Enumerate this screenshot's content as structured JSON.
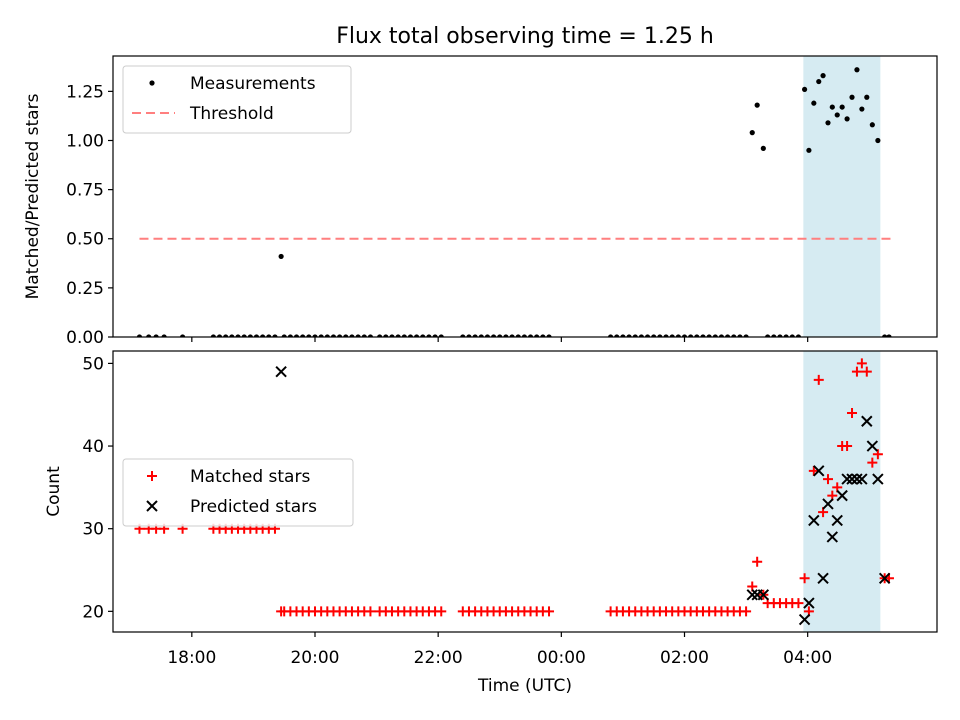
{
  "figure": {
    "title": "Flux total observing time = 1.25 h",
    "xlabel": "Time (UTC)"
  },
  "colors": {
    "axis": "#000000",
    "measurement": "#000000",
    "threshold": "#ff7f7f",
    "matched": "#ff0000",
    "predicted": "#000000",
    "highlight": "#add8e6"
  },
  "chart_data": [
    {
      "type": "scatter",
      "name": "ratio-panel",
      "ylabel": "Matched/Predicted stars",
      "x_unit": "hours since 00:00 UTC on the first day",
      "xlim": [
        16.72,
        30.1
      ],
      "ylim": [
        0,
        1.43
      ],
      "yticks": [
        0,
        0.25,
        0.5,
        0.75,
        1.0,
        1.25
      ],
      "ytick_labels": [
        "0.00",
        "0.25",
        "0.50",
        "0.75",
        "1.00",
        "1.25"
      ],
      "highlight_span": [
        27.93,
        29.18
      ],
      "legend": {
        "placement": "upper-left",
        "entries": [
          {
            "label": "Measurements",
            "style": "dot"
          },
          {
            "label": "Threshold",
            "style": "dashed-line"
          }
        ]
      },
      "series": [
        {
          "name": "Threshold",
          "kind": "line",
          "x": [
            17.15,
            29.35
          ],
          "y": [
            0.5,
            0.5
          ]
        },
        {
          "name": "Measurements",
          "kind": "dot",
          "points": [
            [
              17.15,
              0
            ],
            [
              17.3,
              0
            ],
            [
              17.42,
              0
            ],
            [
              17.55,
              0
            ],
            [
              17.85,
              0
            ],
            [
              18.35,
              0
            ],
            [
              18.45,
              0
            ],
            [
              18.55,
              0
            ],
            [
              18.65,
              0
            ],
            [
              18.75,
              0
            ],
            [
              18.85,
              0
            ],
            [
              18.95,
              0
            ],
            [
              19.05,
              0
            ],
            [
              19.15,
              0
            ],
            [
              19.25,
              0
            ],
            [
              19.35,
              0
            ],
            [
              19.45,
              0.41
            ],
            [
              19.5,
              0
            ],
            [
              19.6,
              0
            ],
            [
              19.7,
              0
            ],
            [
              19.8,
              0
            ],
            [
              19.9,
              0
            ],
            [
              20.0,
              0
            ],
            [
              20.1,
              0
            ],
            [
              20.2,
              0
            ],
            [
              20.3,
              0
            ],
            [
              20.4,
              0
            ],
            [
              20.5,
              0
            ],
            [
              20.6,
              0
            ],
            [
              20.7,
              0
            ],
            [
              20.8,
              0
            ],
            [
              20.9,
              0
            ],
            [
              21.05,
              0
            ],
            [
              21.15,
              0
            ],
            [
              21.25,
              0
            ],
            [
              21.35,
              0
            ],
            [
              21.45,
              0
            ],
            [
              21.55,
              0
            ],
            [
              21.65,
              0
            ],
            [
              21.75,
              0
            ],
            [
              21.85,
              0
            ],
            [
              21.95,
              0
            ],
            [
              22.05,
              0
            ],
            [
              22.4,
              0
            ],
            [
              22.5,
              0
            ],
            [
              22.6,
              0
            ],
            [
              22.7,
              0
            ],
            [
              22.8,
              0
            ],
            [
              22.9,
              0
            ],
            [
              23.0,
              0
            ],
            [
              23.1,
              0
            ],
            [
              23.2,
              0
            ],
            [
              23.3,
              0
            ],
            [
              23.4,
              0
            ],
            [
              23.5,
              0
            ],
            [
              23.6,
              0
            ],
            [
              23.7,
              0
            ],
            [
              23.8,
              0
            ],
            [
              24.8,
              0
            ],
            [
              24.9,
              0
            ],
            [
              25.0,
              0
            ],
            [
              25.1,
              0
            ],
            [
              25.2,
              0
            ],
            [
              25.3,
              0
            ],
            [
              25.4,
              0
            ],
            [
              25.5,
              0
            ],
            [
              25.6,
              0
            ],
            [
              25.7,
              0
            ],
            [
              25.8,
              0
            ],
            [
              25.9,
              0
            ],
            [
              26.0,
              0
            ],
            [
              26.1,
              0
            ],
            [
              26.2,
              0
            ],
            [
              26.3,
              0
            ],
            [
              26.4,
              0
            ],
            [
              26.5,
              0
            ],
            [
              26.6,
              0
            ],
            [
              26.7,
              0
            ],
            [
              26.8,
              0
            ],
            [
              26.9,
              0
            ],
            [
              27.0,
              0
            ],
            [
              27.1,
              1.04
            ],
            [
              27.18,
              1.18
            ],
            [
              27.28,
              0.96
            ],
            [
              27.35,
              0
            ],
            [
              27.45,
              0
            ],
            [
              27.55,
              0
            ],
            [
              27.65,
              0
            ],
            [
              27.75,
              0
            ],
            [
              27.85,
              0
            ],
            [
              27.95,
              1.26
            ],
            [
              28.02,
              0.95
            ],
            [
              28.1,
              1.19
            ],
            [
              28.18,
              1.3
            ],
            [
              28.25,
              1.33
            ],
            [
              28.33,
              1.09
            ],
            [
              28.4,
              1.17
            ],
            [
              28.48,
              1.13
            ],
            [
              28.56,
              1.17
            ],
            [
              28.64,
              1.11
            ],
            [
              28.72,
              1.22
            ],
            [
              28.8,
              1.36
            ],
            [
              28.88,
              1.16
            ],
            [
              28.96,
              1.22
            ],
            [
              29.05,
              1.08
            ],
            [
              29.14,
              1.0
            ],
            [
              29.25,
              0
            ],
            [
              29.32,
              0
            ]
          ]
        }
      ]
    },
    {
      "type": "scatter",
      "name": "count-panel",
      "ylabel": "Count",
      "xlim": [
        16.72,
        30.1
      ],
      "ylim": [
        17.5,
        51.5
      ],
      "yticks": [
        20,
        30,
        40,
        50
      ],
      "ytick_labels": [
        "20",
        "30",
        "40",
        "50"
      ],
      "xticks": [
        18,
        20,
        22,
        24,
        26,
        28
      ],
      "xtick_labels": [
        "18:00",
        "20:00",
        "22:00",
        "00:00",
        "02:00",
        "04:00"
      ],
      "highlight_span": [
        27.93,
        29.18
      ],
      "legend": {
        "placement": "center-left",
        "entries": [
          {
            "label": "Matched stars",
            "style": "plus"
          },
          {
            "label": "Predicted stars",
            "style": "cross"
          }
        ]
      },
      "series": [
        {
          "name": "Matched stars",
          "kind": "plus",
          "points": [
            [
              17.15,
              30
            ],
            [
              17.3,
              30
            ],
            [
              17.42,
              30
            ],
            [
              17.55,
              30
            ],
            [
              17.85,
              30
            ],
            [
              18.35,
              30
            ],
            [
              18.45,
              30
            ],
            [
              18.55,
              30
            ],
            [
              18.65,
              30
            ],
            [
              18.75,
              30
            ],
            [
              18.85,
              30
            ],
            [
              18.95,
              30
            ],
            [
              19.05,
              30
            ],
            [
              19.15,
              30
            ],
            [
              19.25,
              30
            ],
            [
              19.35,
              30
            ],
            [
              19.45,
              20
            ],
            [
              19.5,
              20
            ],
            [
              19.6,
              20
            ],
            [
              19.7,
              20
            ],
            [
              19.8,
              20
            ],
            [
              19.9,
              20
            ],
            [
              20.0,
              20
            ],
            [
              20.1,
              20
            ],
            [
              20.2,
              20
            ],
            [
              20.3,
              20
            ],
            [
              20.4,
              20
            ],
            [
              20.5,
              20
            ],
            [
              20.6,
              20
            ],
            [
              20.7,
              20
            ],
            [
              20.8,
              20
            ],
            [
              20.9,
              20
            ],
            [
              21.05,
              20
            ],
            [
              21.15,
              20
            ],
            [
              21.25,
              20
            ],
            [
              21.35,
              20
            ],
            [
              21.45,
              20
            ],
            [
              21.55,
              20
            ],
            [
              21.65,
              20
            ],
            [
              21.75,
              20
            ],
            [
              21.85,
              20
            ],
            [
              21.95,
              20
            ],
            [
              22.05,
              20
            ],
            [
              22.4,
              20
            ],
            [
              22.5,
              20
            ],
            [
              22.6,
              20
            ],
            [
              22.7,
              20
            ],
            [
              22.8,
              20
            ],
            [
              22.9,
              20
            ],
            [
              23.0,
              20
            ],
            [
              23.1,
              20
            ],
            [
              23.2,
              20
            ],
            [
              23.3,
              20
            ],
            [
              23.4,
              20
            ],
            [
              23.5,
              20
            ],
            [
              23.6,
              20
            ],
            [
              23.7,
              20
            ],
            [
              23.8,
              20
            ],
            [
              24.8,
              20
            ],
            [
              24.9,
              20
            ],
            [
              25.0,
              20
            ],
            [
              25.1,
              20
            ],
            [
              25.2,
              20
            ],
            [
              25.3,
              20
            ],
            [
              25.4,
              20
            ],
            [
              25.5,
              20
            ],
            [
              25.6,
              20
            ],
            [
              25.7,
              20
            ],
            [
              25.8,
              20
            ],
            [
              25.9,
              20
            ],
            [
              26.0,
              20
            ],
            [
              26.1,
              20
            ],
            [
              26.2,
              20
            ],
            [
              26.3,
              20
            ],
            [
              26.4,
              20
            ],
            [
              26.5,
              20
            ],
            [
              26.6,
              20
            ],
            [
              26.7,
              20
            ],
            [
              26.8,
              20
            ],
            [
              26.9,
              20
            ],
            [
              27.0,
              20
            ],
            [
              27.1,
              23
            ],
            [
              27.18,
              26
            ],
            [
              27.28,
              22
            ],
            [
              27.35,
              21
            ],
            [
              27.45,
              21
            ],
            [
              27.55,
              21
            ],
            [
              27.65,
              21
            ],
            [
              27.75,
              21
            ],
            [
              27.85,
              21
            ],
            [
              27.95,
              24
            ],
            [
              28.02,
              20
            ],
            [
              28.1,
              37
            ],
            [
              28.18,
              48
            ],
            [
              28.25,
              32
            ],
            [
              28.33,
              36
            ],
            [
              28.4,
              34
            ],
            [
              28.48,
              35
            ],
            [
              28.56,
              40
            ],
            [
              28.64,
              40
            ],
            [
              28.72,
              44
            ],
            [
              28.8,
              49
            ],
            [
              28.88,
              50
            ],
            [
              28.96,
              49
            ],
            [
              29.05,
              38
            ],
            [
              29.14,
              39
            ],
            [
              29.25,
              24
            ],
            [
              29.32,
              24
            ]
          ]
        },
        {
          "name": "Predicted stars",
          "kind": "cross",
          "points": [
            [
              19.45,
              49
            ],
            [
              27.1,
              22
            ],
            [
              27.18,
              22
            ],
            [
              27.28,
              22
            ],
            [
              27.95,
              19
            ],
            [
              28.02,
              21
            ],
            [
              28.1,
              31
            ],
            [
              28.18,
              37
            ],
            [
              28.25,
              24
            ],
            [
              28.33,
              33
            ],
            [
              28.4,
              29
            ],
            [
              28.48,
              31
            ],
            [
              28.56,
              34
            ],
            [
              28.64,
              36
            ],
            [
              28.72,
              36
            ],
            [
              28.8,
              36
            ],
            [
              28.88,
              36
            ],
            [
              28.96,
              43
            ],
            [
              29.05,
              40
            ],
            [
              29.14,
              36
            ],
            [
              29.25,
              24
            ]
          ]
        }
      ]
    }
  ]
}
